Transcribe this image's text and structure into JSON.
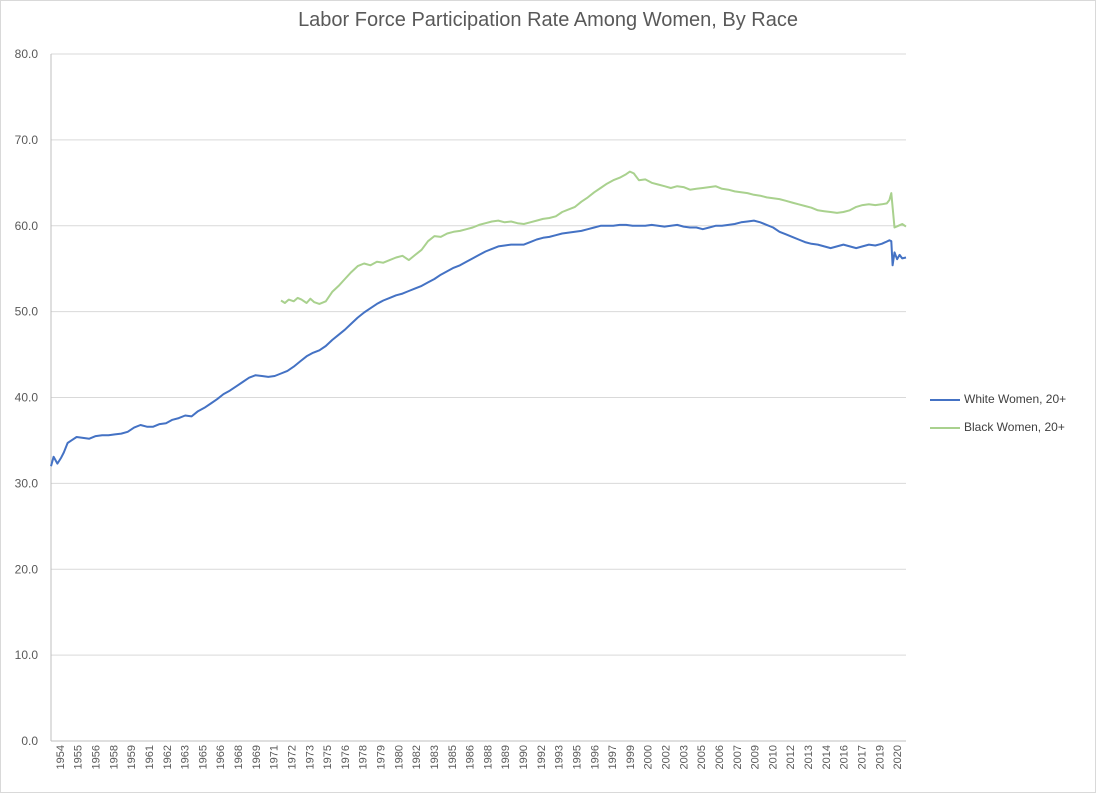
{
  "chart_data": {
    "type": "line",
    "title": "Labor Force Participation Rate Among Women, By Race",
    "xlabel": "",
    "ylabel": "",
    "ylim": [
      0,
      80
    ],
    "yticks": [
      "0.0",
      "10.0",
      "20.0",
      "30.0",
      "40.0",
      "50.0",
      "60.0",
      "70.0",
      "80.0"
    ],
    "xtick_labels": [
      "1954",
      "1955",
      "1956",
      "1958",
      "1959",
      "1961",
      "1962",
      "1963",
      "1965",
      "1966",
      "1968",
      "1969",
      "1971",
      "1972",
      "1973",
      "1975",
      "1976",
      "1978",
      "1979",
      "1980",
      "1982",
      "1983",
      "1985",
      "1986",
      "1988",
      "1989",
      "1990",
      "1992",
      "1993",
      "1995",
      "1996",
      "1997",
      "1999",
      "2000",
      "2002",
      "2003",
      "2005",
      "2006",
      "2007",
      "2009",
      "2010",
      "2012",
      "2013",
      "2014",
      "2016",
      "2017",
      "2019",
      "2020"
    ],
    "x_range": [
      1954.0,
      2020.9
    ],
    "grid": true,
    "legend_position": "right",
    "series": [
      {
        "name": "White Women, 20+",
        "color": "#4472c4",
        "x": [
          1954.0,
          1954.2,
          1954.5,
          1954.8,
          1955.0,
          1955.3,
          1955.6,
          1956.0,
          1956.5,
          1957.0,
          1957.5,
          1958.0,
          1958.5,
          1959.0,
          1959.5,
          1960.0,
          1960.5,
          1961.0,
          1961.5,
          1962.0,
          1962.5,
          1963.0,
          1963.5,
          1964.0,
          1964.5,
          1965.0,
          1965.5,
          1966.0,
          1966.5,
          1967.0,
          1967.5,
          1968.0,
          1968.5,
          1969.0,
          1969.5,
          1970.0,
          1970.5,
          1971.0,
          1971.5,
          1972.0,
          1972.5,
          1973.0,
          1973.5,
          1974.0,
          1974.5,
          1975.0,
          1975.5,
          1976.0,
          1976.5,
          1977.0,
          1977.5,
          1978.0,
          1978.5,
          1979.0,
          1979.5,
          1980.0,
          1980.5,
          1981.0,
          1981.5,
          1982.0,
          1982.5,
          1983.0,
          1983.5,
          1984.0,
          1984.5,
          1985.0,
          1985.5,
          1986.0,
          1986.5,
          1987.0,
          1987.5,
          1988.0,
          1988.5,
          1989.0,
          1989.5,
          1990.0,
          1990.5,
          1991.0,
          1991.5,
          1992.0,
          1992.5,
          1993.0,
          1993.5,
          1994.0,
          1994.5,
          1995.0,
          1995.5,
          1996.0,
          1996.5,
          1997.0,
          1997.5,
          1998.0,
          1998.5,
          1999.0,
          1999.5,
          2000.0,
          2000.5,
          2001.0,
          2001.5,
          2002.0,
          2002.5,
          2003.0,
          2003.5,
          2004.0,
          2004.5,
          2005.0,
          2005.5,
          2006.0,
          2006.5,
          2007.0,
          2007.5,
          2008.0,
          2008.5,
          2009.0,
          2009.5,
          2010.0,
          2010.5,
          2011.0,
          2011.5,
          2012.0,
          2012.5,
          2013.0,
          2013.5,
          2014.0,
          2014.5,
          2015.0,
          2015.5,
          2016.0,
          2016.5,
          2017.0,
          2017.5,
          2018.0,
          2018.5,
          2019.0,
          2019.3,
          2019.6,
          2019.75,
          2019.85,
          2020.0,
          2020.2,
          2020.4,
          2020.6,
          2020.9
        ],
        "values": [
          32.0,
          33.1,
          32.3,
          33.0,
          33.6,
          34.7,
          35.0,
          35.4,
          35.3,
          35.2,
          35.5,
          35.6,
          35.6,
          35.7,
          35.8,
          36.0,
          36.5,
          36.8,
          36.6,
          36.6,
          36.9,
          37.0,
          37.4,
          37.6,
          37.9,
          37.8,
          38.4,
          38.8,
          39.3,
          39.8,
          40.4,
          40.8,
          41.3,
          41.8,
          42.3,
          42.6,
          42.5,
          42.4,
          42.5,
          42.8,
          43.1,
          43.6,
          44.2,
          44.8,
          45.2,
          45.5,
          46.0,
          46.7,
          47.3,
          47.9,
          48.6,
          49.3,
          49.9,
          50.4,
          50.9,
          51.3,
          51.6,
          51.9,
          52.1,
          52.4,
          52.7,
          53.0,
          53.4,
          53.8,
          54.3,
          54.7,
          55.1,
          55.4,
          55.8,
          56.2,
          56.6,
          57.0,
          57.3,
          57.6,
          57.7,
          57.8,
          57.8,
          57.8,
          58.1,
          58.4,
          58.6,
          58.7,
          58.9,
          59.1,
          59.2,
          59.3,
          59.4,
          59.6,
          59.8,
          60.0,
          60.0,
          60.0,
          60.1,
          60.1,
          60.0,
          60.0,
          60.0,
          60.1,
          60.0,
          59.9,
          60.0,
          60.1,
          59.9,
          59.8,
          59.8,
          59.6,
          59.8,
          60.0,
          60.0,
          60.1,
          60.2,
          60.4,
          60.5,
          60.6,
          60.4,
          60.1,
          59.8,
          59.3,
          59.0,
          58.7,
          58.4,
          58.1,
          57.9,
          57.8,
          57.6,
          57.4,
          57.6,
          57.8,
          57.6,
          57.4,
          57.6,
          57.8,
          57.7,
          57.9,
          58.1,
          58.3,
          58.2,
          55.4,
          56.9,
          56.1,
          56.6,
          56.2,
          56.3
        ]
      },
      {
        "name": "Black Women, 20+",
        "color": "#a9d18e",
        "x": [
          1972.0,
          1972.3,
          1972.6,
          1973.0,
          1973.3,
          1973.6,
          1974.0,
          1974.3,
          1974.6,
          1975.0,
          1975.5,
          1976.0,
          1976.5,
          1977.0,
          1977.5,
          1978.0,
          1978.5,
          1979.0,
          1979.5,
          1980.0,
          1980.5,
          1981.0,
          1981.5,
          1982.0,
          1982.5,
          1983.0,
          1983.5,
          1984.0,
          1984.5,
          1985.0,
          1985.5,
          1986.0,
          1986.5,
          1987.0,
          1987.5,
          1988.0,
          1988.5,
          1989.0,
          1989.5,
          1990.0,
          1990.5,
          1991.0,
          1991.5,
          1992.0,
          1992.5,
          1993.0,
          1993.5,
          1994.0,
          1994.5,
          1995.0,
          1995.5,
          1996.0,
          1996.5,
          1997.0,
          1997.5,
          1998.0,
          1998.5,
          1999.0,
          1999.3,
          1999.6,
          2000.0,
          2000.5,
          2001.0,
          2001.5,
          2002.0,
          2002.5,
          2003.0,
          2003.5,
          2004.0,
          2004.5,
          2005.0,
          2005.5,
          2006.0,
          2006.5,
          2007.0,
          2007.5,
          2008.0,
          2008.5,
          2009.0,
          2009.5,
          2010.0,
          2010.5,
          2011.0,
          2011.5,
          2012.0,
          2012.5,
          2013.0,
          2013.5,
          2014.0,
          2014.5,
          2015.0,
          2015.5,
          2016.0,
          2016.5,
          2017.0,
          2017.5,
          2018.0,
          2018.5,
          2019.0,
          2019.4,
          2019.6,
          2019.75,
          2020.0,
          2020.3,
          2020.6,
          2020.9
        ],
        "values": [
          51.3,
          51.0,
          51.4,
          51.2,
          51.6,
          51.4,
          51.0,
          51.5,
          51.1,
          50.9,
          51.2,
          52.3,
          53.0,
          53.8,
          54.6,
          55.3,
          55.6,
          55.4,
          55.8,
          55.7,
          56.0,
          56.3,
          56.5,
          56.0,
          56.6,
          57.2,
          58.2,
          58.8,
          58.7,
          59.1,
          59.3,
          59.4,
          59.6,
          59.8,
          60.1,
          60.3,
          60.5,
          60.6,
          60.4,
          60.5,
          60.3,
          60.2,
          60.4,
          60.6,
          60.8,
          60.9,
          61.1,
          61.6,
          61.9,
          62.2,
          62.8,
          63.3,
          63.9,
          64.4,
          64.9,
          65.3,
          65.6,
          66.0,
          66.3,
          66.1,
          65.3,
          65.4,
          65.0,
          64.8,
          64.6,
          64.4,
          64.6,
          64.5,
          64.2,
          64.3,
          64.4,
          64.5,
          64.6,
          64.3,
          64.2,
          64.0,
          63.9,
          63.8,
          63.6,
          63.5,
          63.3,
          63.2,
          63.1,
          62.9,
          62.7,
          62.5,
          62.3,
          62.1,
          61.8,
          61.7,
          61.6,
          61.5,
          61.6,
          61.8,
          62.2,
          62.4,
          62.5,
          62.4,
          62.5,
          62.6,
          63.0,
          63.8,
          59.8,
          60.0,
          60.2,
          59.9
        ]
      }
    ]
  }
}
